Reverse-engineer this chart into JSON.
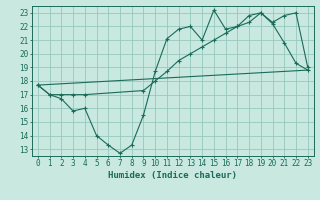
{
  "bg_color": "#c8e8e0",
  "grid_color": "#96c8be",
  "line_color": "#1a6b5a",
  "xlabel": "Humidex (Indice chaleur)",
  "xlim": [
    -0.5,
    23.5
  ],
  "ylim": [
    12.5,
    23.5
  ],
  "xticks": [
    0,
    1,
    2,
    3,
    4,
    5,
    6,
    7,
    8,
    9,
    10,
    11,
    12,
    13,
    14,
    15,
    16,
    17,
    18,
    19,
    20,
    21,
    22,
    23
  ],
  "yticks": [
    13,
    14,
    15,
    16,
    17,
    18,
    19,
    20,
    21,
    22,
    23
  ],
  "line1_x": [
    0,
    1,
    2,
    3,
    4,
    5,
    6,
    7,
    8,
    9,
    10,
    11,
    12,
    13,
    14,
    15,
    16,
    17,
    18,
    19,
    20,
    21,
    22,
    23
  ],
  "line1_y": [
    17.7,
    17.0,
    16.7,
    15.8,
    16.0,
    14.0,
    13.3,
    12.7,
    13.3,
    15.5,
    18.7,
    21.1,
    21.8,
    22.0,
    21.0,
    23.2,
    21.8,
    22.0,
    22.8,
    23.0,
    22.2,
    20.8,
    19.3,
    18.8
  ],
  "line2_x": [
    0,
    1,
    2,
    3,
    4,
    9,
    10,
    11,
    12,
    13,
    14,
    15,
    16,
    17,
    18,
    19,
    20,
    21,
    22,
    23
  ],
  "line2_y": [
    17.7,
    17.0,
    17.0,
    17.0,
    17.0,
    17.3,
    18.0,
    18.7,
    19.5,
    20.0,
    20.5,
    21.0,
    21.5,
    22.0,
    22.3,
    23.0,
    22.3,
    22.8,
    23.0,
    19.0
  ],
  "line3_x": [
    0,
    23
  ],
  "line3_y": [
    17.7,
    18.8
  ]
}
